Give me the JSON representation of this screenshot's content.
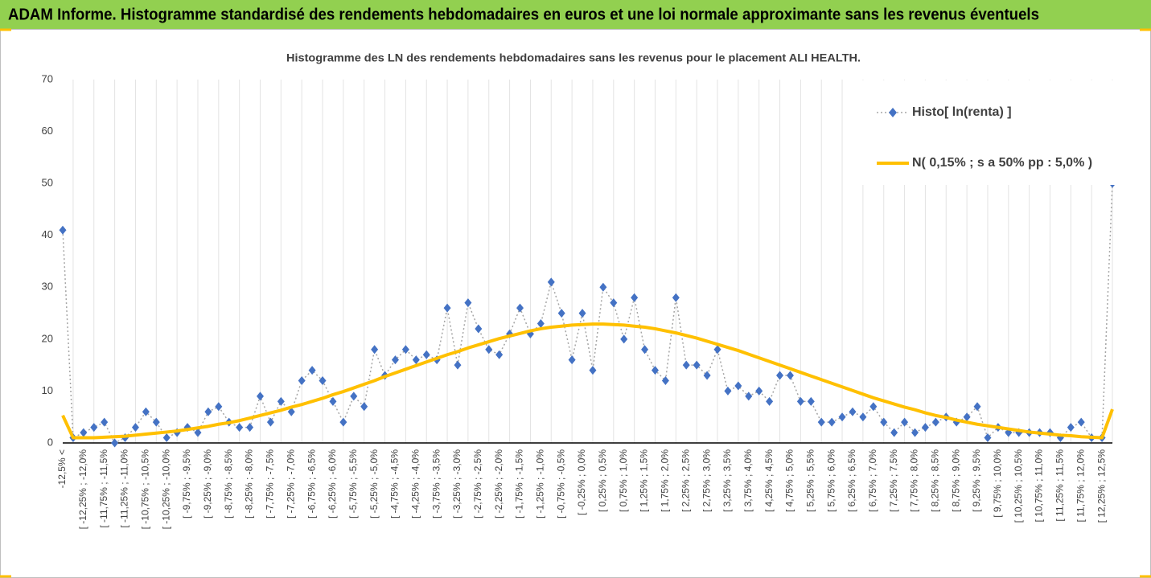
{
  "header": {
    "title": "ADAM Informe. Histogramme standardisé des rendements hebdomadaires en euros et une loi normale approximante sans les revenus éventuels"
  },
  "chart_data": {
    "type": "line",
    "title": "Histogramme des LN des rendements hebdomadaires sans les revenus pour le placement ALI HEALTH.",
    "categories": [
      "-12,5% <",
      null,
      "[ -12,25% ; -12,0%",
      null,
      "[ -11,75% ; -11,5%",
      null,
      "[ -11,25% ; -11,0%",
      null,
      "[ -10,75% ; -10,5%",
      null,
      "[ -10,25% ; -10,0%",
      null,
      "[ -9,75% ; -9,5%",
      null,
      "[ -9,25% ; -9,0%",
      null,
      "[ -8,75% ; -8,5%",
      null,
      "[ -8,25% ; -8,0%",
      null,
      "[ -7,75% ; -7,5%",
      null,
      "[ -7,25% ; -7,0%",
      null,
      "[ -6,75% ; -6,5%",
      null,
      "[ -6,25% ; -6,0%",
      null,
      "[ -5,75% ; -5,5%",
      null,
      "[ -5,25% ; -5,0%",
      null,
      "[ -4,75% ; -4,5%",
      null,
      "[ -4,25% ; -4,0%",
      null,
      "[ -3,75% ; -3,5%",
      null,
      "[ -3,25% ; -3,0%",
      null,
      "[ -2,75% ; -2,5%",
      null,
      "[ -2,25% ; -2,0%",
      null,
      "[ -1,75% ; -1,5%",
      null,
      "[ -1,25% ; -1,0%",
      null,
      "[ -0,75% ; -0,5%",
      null,
      "[ -0,25% ; 0,0%",
      null,
      "[ 0,25% ; 0,5%",
      null,
      "[ 0,75% ; 1,0%",
      null,
      "[ 1,25% ; 1,5%",
      null,
      "[ 1,75% ; 2,0%",
      null,
      "[ 2,25% ; 2,5%",
      null,
      "[ 2,75% ; 3,0%",
      null,
      "[ 3,25% ; 3,5%",
      null,
      "[ 3,75% ; 4,0%",
      null,
      "[ 4,25% ; 4,5%",
      null,
      "[ 4,75% ; 5,0%",
      null,
      "[ 5,25% ; 5,5%",
      null,
      "[ 5,75% ; 6,0%",
      null,
      "[ 6,25% ; 6,5%",
      null,
      "[ 6,75% ; 7,0%",
      null,
      "[ 7,25% ; 7,5%",
      null,
      "[ 7,75% ; 8,0%",
      null,
      "[ 8,25% ; 8,5%",
      null,
      "[ 8,75% ; 9,0%",
      null,
      "[ 9,25% ; 9,5%",
      null,
      "[ 9,75% ; 10,0%",
      null,
      "[ 10,25% ; 10,5%",
      null,
      "[ 10,75% ; 11,0%",
      null,
      "[ 11,25% ; 11,5%",
      null,
      "[ 11,75% ; 12,0%",
      null,
      "[ 12,25% ; 12,5%",
      null
    ],
    "series": [
      {
        "name": "Histo[ ln(renta) ]",
        "color": "#4472c4",
        "line_color": "#a5a5a5",
        "marker": "diamond",
        "values": [
          41,
          1,
          2,
          3,
          4,
          0,
          1,
          3,
          6,
          4,
          1,
          2,
          3,
          2,
          6,
          7,
          4,
          3,
          3,
          9,
          4,
          8,
          6,
          12,
          14,
          12,
          8,
          4,
          9,
          7,
          18,
          13,
          16,
          18,
          16,
          17,
          16,
          26,
          15,
          27,
          22,
          18,
          17,
          21,
          26,
          21,
          23,
          31,
          25,
          16,
          25,
          14,
          30,
          27,
          20,
          28,
          18,
          14,
          12,
          28,
          15,
          15,
          13,
          18,
          10,
          11,
          9,
          10,
          8,
          13,
          13,
          8,
          8,
          4,
          4,
          5,
          6,
          5,
          7,
          4,
          2,
          4,
          2,
          3,
          4,
          5,
          4,
          5,
          7,
          1,
          3,
          2,
          2,
          2,
          2,
          2,
          1,
          3,
          4,
          1,
          1,
          50
        ]
      },
      {
        "name": "N( 0,15% ; s a 50% pp : 5,0% )",
        "color": "#ffc000",
        "values": [
          5.3,
          1.0,
          1.0,
          1.0,
          1.1,
          1.2,
          1.3,
          1.5,
          1.7,
          1.9,
          2.1,
          2.3,
          2.6,
          2.9,
          3.2,
          3.6,
          3.9,
          4.3,
          4.8,
          5.3,
          5.8,
          6.3,
          6.9,
          7.4,
          8.0,
          8.6,
          9.3,
          9.9,
          10.6,
          11.3,
          12.0,
          12.8,
          13.5,
          14.2,
          14.9,
          15.6,
          16.3,
          17.0,
          17.6,
          18.3,
          18.9,
          19.5,
          20.1,
          20.6,
          21.1,
          21.6,
          22.0,
          22.3,
          22.5,
          22.7,
          22.8,
          22.9,
          22.9,
          22.8,
          22.7,
          22.5,
          22.3,
          22.0,
          21.6,
          21.2,
          20.7,
          20.2,
          19.6,
          19.0,
          18.4,
          17.8,
          17.1,
          16.4,
          15.7,
          15.0,
          14.3,
          13.6,
          12.9,
          12.2,
          11.5,
          10.8,
          10.1,
          9.4,
          8.7,
          8.1,
          7.5,
          6.9,
          6.4,
          5.8,
          5.3,
          4.9,
          4.4,
          4.0,
          3.6,
          3.3,
          3.0,
          2.7,
          2.4,
          2.1,
          1.9,
          1.7,
          1.5,
          1.4,
          1.2,
          1.1,
          1.0,
          6.5
        ]
      }
    ],
    "ylim": [
      0,
      70
    ],
    "yticks": [
      0,
      10,
      20,
      30,
      40,
      50,
      60,
      70
    ],
    "grid": "vertical",
    "legend": "top-right"
  }
}
